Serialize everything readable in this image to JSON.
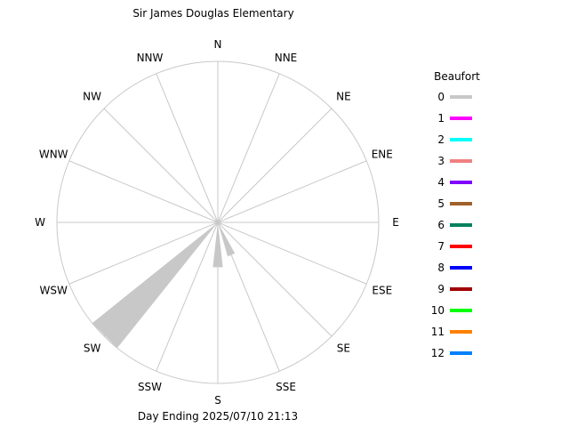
{
  "chart_data": {
    "type": "windrose",
    "title": "Sir James Douglas Elementary",
    "footer": "Day Ending 2025/07/10 21:13",
    "directions": [
      "N",
      "NNE",
      "NE",
      "ENE",
      "E",
      "ESE",
      "SE",
      "SSE",
      "S",
      "SSW",
      "SW",
      "WSW",
      "W",
      "WNW",
      "NW",
      "NNW"
    ],
    "rmax": 100,
    "series_fractions": [
      {
        "beaufort": "0",
        "values": [
          0,
          0,
          0,
          0,
          0,
          0,
          0,
          22,
          28,
          0,
          100,
          0,
          0,
          0,
          0,
          0
        ]
      }
    ],
    "legend": {
      "title": "Beaufort",
      "items": [
        {
          "label": "0",
          "color": "#c8c8c8"
        },
        {
          "label": "1",
          "color": "#ff00ff"
        },
        {
          "label": "2",
          "color": "#00ffff"
        },
        {
          "label": "3",
          "color": "#f08080"
        },
        {
          "label": "4",
          "color": "#8000ff"
        },
        {
          "label": "5",
          "color": "#a0602a"
        },
        {
          "label": "6",
          "color": "#008060"
        },
        {
          "label": "7",
          "color": "#ff0000"
        },
        {
          "label": "8",
          "color": "#0000ff"
        },
        {
          "label": "9",
          "color": "#a00000"
        },
        {
          "label": "10",
          "color": "#00ff00"
        },
        {
          "label": "11",
          "color": "#ff8000"
        },
        {
          "label": "12",
          "color": "#0080ff"
        }
      ]
    }
  }
}
